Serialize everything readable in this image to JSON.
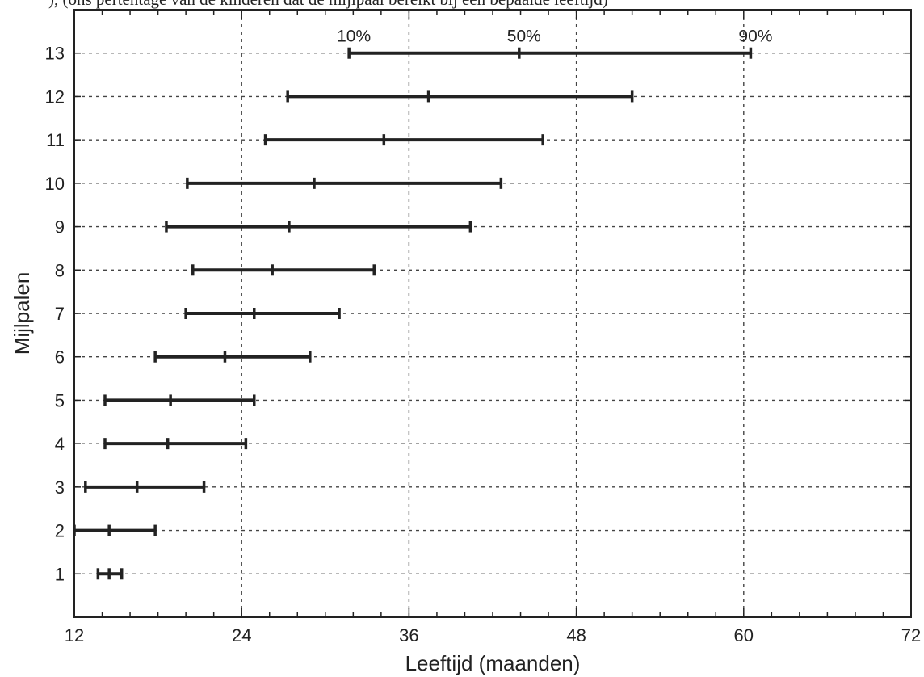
{
  "header": {
    "caption": "), (ons pertentage van de kinderen dat de mijlpaal bereikt bij een bepaalde leeftijd)"
  },
  "chart_data": {
    "type": "range",
    "xlabel": "Leeftijd (maanden)",
    "ylabel": "Mijlpalen",
    "xlim": [
      12,
      72
    ],
    "ylim": [
      0,
      14
    ],
    "x_ticks": [
      12,
      24,
      36,
      48,
      60,
      72
    ],
    "y_ticks": [
      1,
      2,
      3,
      4,
      5,
      6,
      7,
      8,
      9,
      10,
      11,
      12,
      13
    ],
    "grid": true,
    "percentile_labels": [
      "10%",
      "50%",
      "90%"
    ],
    "ranges": [
      {
        "milestone": 1,
        "p10": 13.7,
        "p50": 14.5,
        "p90": 15.4
      },
      {
        "milestone": 2,
        "p10": 12.0,
        "p50": 14.5,
        "p90": 17.8
      },
      {
        "milestone": 3,
        "p10": 12.8,
        "p50": 16.5,
        "p90": 21.3
      },
      {
        "milestone": 4,
        "p10": 14.2,
        "p50": 18.7,
        "p90": 24.3
      },
      {
        "milestone": 5,
        "p10": 14.2,
        "p50": 18.9,
        "p90": 24.9
      },
      {
        "milestone": 6,
        "p10": 17.8,
        "p50": 22.8,
        "p90": 28.9
      },
      {
        "milestone": 7,
        "p10": 20.0,
        "p50": 24.9,
        "p90": 31.0
      },
      {
        "milestone": 8,
        "p10": 20.5,
        "p50": 26.2,
        "p90": 33.5
      },
      {
        "milestone": 9,
        "p10": 18.6,
        "p50": 27.4,
        "p90": 40.4
      },
      {
        "milestone": 10,
        "p10": 20.1,
        "p50": 29.2,
        "p90": 42.6
      },
      {
        "milestone": 11,
        "p10": 25.7,
        "p50": 34.2,
        "p90": 45.6
      },
      {
        "milestone": 12,
        "p10": 27.3,
        "p50": 37.4,
        "p90": 52.0
      },
      {
        "milestone": 13,
        "p10": 31.7,
        "p50": 43.9,
        "p90": 60.5
      }
    ]
  }
}
